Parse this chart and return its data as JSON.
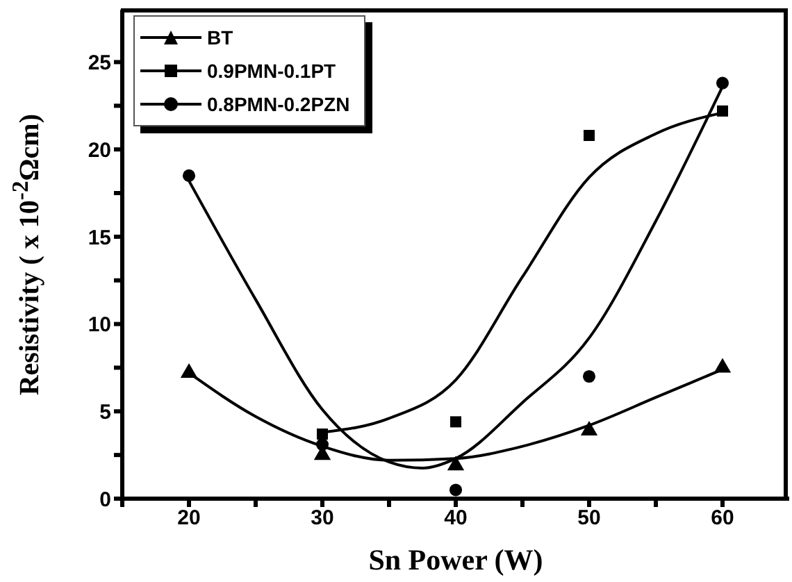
{
  "chart_data": {
    "type": "scatter",
    "xlabel": "Sn Power (W)",
    "ylabel": "Resistivity ( x 10$^{-2}$Ωcm)",
    "xlim": [
      15,
      65
    ],
    "ylim": [
      0,
      28
    ],
    "xticks": [
      {
        "value": 15,
        "label": null
      },
      20,
      {
        "value": 25,
        "label": null
      },
      30,
      {
        "value": 35,
        "label": null
      },
      40,
      {
        "value": 45,
        "label": null
      },
      50,
      {
        "value": 55,
        "label": null
      },
      60
    ],
    "yticks": [
      0,
      {
        "value": 2.5,
        "label": null
      },
      5,
      {
        "value": 7.5,
        "label": null
      },
      10,
      {
        "value": 12.5,
        "label": null
      },
      15,
      {
        "value": 17.5,
        "label": null
      },
      20,
      {
        "value": 22.5,
        "label": null
      },
      25
    ],
    "grid": false,
    "legend": "top left",
    "series": [
      {
        "name": "BT",
        "marker": "triangle",
        "color": "#000000",
        "x": [
          20,
          30,
          40,
          50,
          60
        ],
        "values": [
          7.2,
          2.5,
          1.9,
          3.9,
          7.5
        ]
      },
      {
        "name": "0.9PMN-0.1PT",
        "marker": "square",
        "color": "#000000",
        "x": [
          30,
          40,
          50,
          60
        ],
        "values": [
          3.7,
          4.4,
          20.8,
          22.2
        ]
      },
      {
        "name": "0.8PMN-0.2PZN",
        "marker": "circle",
        "color": "#000000",
        "x": [
          20,
          30,
          40,
          50,
          60
        ],
        "values": [
          18.5,
          3.1,
          0.5,
          7.0,
          23.8
        ]
      },
      {
        "type": "line",
        "marker": "none",
        "color": "#000000",
        "x": [
          20,
          25,
          30,
          35,
          40,
          45,
          50,
          55,
          60
        ],
        "values": [
          7.2,
          4.7,
          3.0,
          2.2,
          2.3,
          3.0,
          4.2,
          5.8,
          7.4
        ]
      },
      {
        "type": "line",
        "marker": "none",
        "color": "#000000",
        "x": [
          30,
          35,
          40,
          45,
          50,
          55,
          60
        ],
        "values": [
          3.8,
          4.6,
          6.8,
          12.7,
          18.4,
          20.9,
          22.1
        ]
      },
      {
        "type": "line",
        "marker": "none",
        "color": "#000000",
        "x": [
          20,
          25,
          30,
          35,
          37.5,
          40,
          45,
          50,
          55,
          60
        ],
        "values": [
          18.2,
          11.4,
          5.1,
          2.1,
          1.75,
          2.3,
          5.5,
          9.2,
          15.9,
          23.6
        ]
      }
    ]
  }
}
